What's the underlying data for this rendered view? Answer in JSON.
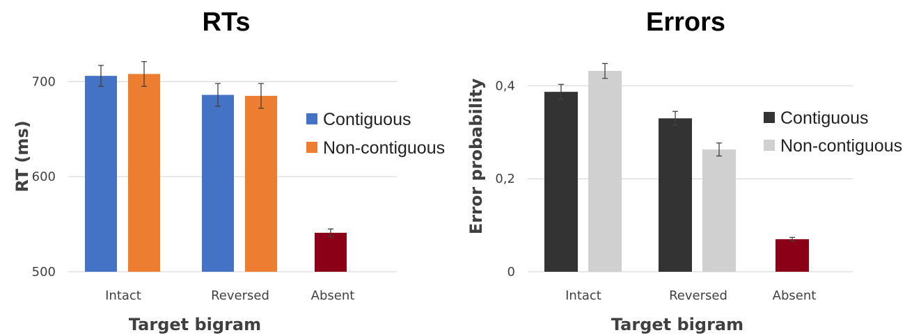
{
  "chart_data": [
    {
      "type": "bar",
      "title": "RTs",
      "xlabel": "Target bigram",
      "ylabel": "RT (ms)",
      "ylim": [
        500,
        720
      ],
      "yticks": [
        500,
        600,
        700
      ],
      "ytick_labels": [
        "500",
        "600",
        "700"
      ],
      "grid": true,
      "legend_position": "right",
      "groups": [
        {
          "category": "Intact",
          "bars": [
            {
              "series": "Contiguous",
              "value": 706,
              "error": 11
            },
            {
              "series": "Non-contiguous",
              "value": 708,
              "error": 13
            }
          ]
        },
        {
          "category": "Reversed",
          "bars": [
            {
              "series": "Contiguous",
              "value": 686,
              "error": 12
            },
            {
              "series": "Non-contiguous",
              "value": 685,
              "error": 13
            }
          ]
        },
        {
          "category": "Absent",
          "bars": [
            {
              "series": "Absent",
              "value": 541,
              "error": 4
            }
          ]
        }
      ],
      "legend": [
        {
          "name": "Contiguous",
          "color": "#4472c4"
        },
        {
          "name": "Non-contiguous",
          "color": "#ed7d31"
        }
      ],
      "colors": {
        "Contiguous": "#4472c4",
        "Non-contiguous": "#ed7d31",
        "Absent": "#8b0016"
      }
    },
    {
      "type": "bar",
      "title": "Errors",
      "xlabel": "Target bigram",
      "ylabel": "Error probability",
      "ylim": [
        0,
        0.45
      ],
      "yticks": [
        0,
        0.2,
        0.4
      ],
      "ytick_labels": [
        "0",
        "0,2",
        "0,4"
      ],
      "grid": true,
      "legend_position": "right",
      "groups": [
        {
          "category": "Intact",
          "bars": [
            {
              "series": "Contiguous",
              "value": 0.387,
              "error": 0.016
            },
            {
              "series": "Non-contiguous",
              "value": 0.432,
              "error": 0.016
            }
          ]
        },
        {
          "category": "Reversed",
          "bars": [
            {
              "series": "Contiguous",
              "value": 0.33,
              "error": 0.015
            },
            {
              "series": "Non-contiguous",
              "value": 0.263,
              "error": 0.014
            }
          ]
        },
        {
          "category": "Absent",
          "bars": [
            {
              "series": "Absent",
              "value": 0.07,
              "error": 0.004
            }
          ]
        }
      ],
      "legend": [
        {
          "name": "Contiguous",
          "color": "#333333"
        },
        {
          "name": "Non-contiguous",
          "color": "#d0d0d0"
        }
      ],
      "colors": {
        "Contiguous": "#333333",
        "Non-contiguous": "#d0d0d0",
        "Absent": "#8b0016"
      }
    }
  ]
}
